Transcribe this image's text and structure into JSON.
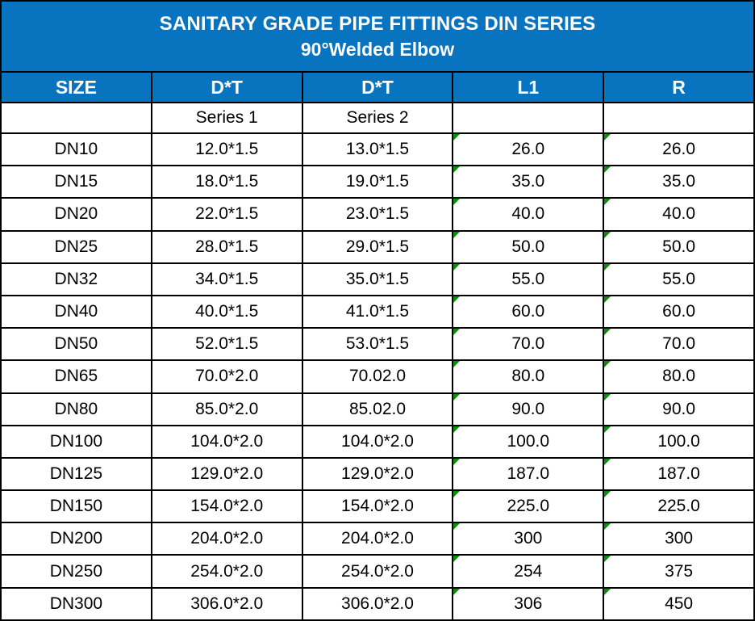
{
  "title": {
    "line1": "SANITARY GRADE PIPE FITTINGS DIN SERIES",
    "line2": "90°Welded Elbow"
  },
  "colors": {
    "header_blue": "#0873be",
    "flag_green": "#0a8f08",
    "border_black": "#000000"
  },
  "table": {
    "columns": [
      "SIZE",
      "D*T",
      "D*T",
      "L1",
      "R"
    ],
    "subheader": [
      "",
      "Series 1",
      "Series 2",
      "",
      ""
    ],
    "flag_columns": [
      3,
      4
    ],
    "rows": [
      [
        "DN10",
        "12.0*1.5",
        "13.0*1.5",
        "26.0",
        "26.0"
      ],
      [
        "DN15",
        "18.0*1.5",
        "19.0*1.5",
        "35.0",
        "35.0"
      ],
      [
        "DN20",
        "22.0*1.5",
        "23.0*1.5",
        "40.0",
        "40.0"
      ],
      [
        "DN25",
        "28.0*1.5",
        "29.0*1.5",
        "50.0",
        "50.0"
      ],
      [
        "DN32",
        "34.0*1.5",
        "35.0*1.5",
        "55.0",
        "55.0"
      ],
      [
        "DN40",
        "40.0*1.5",
        "41.0*1.5",
        "60.0",
        "60.0"
      ],
      [
        "DN50",
        "52.0*1.5",
        "53.0*1.5",
        "70.0",
        "70.0"
      ],
      [
        "DN65",
        "70.0*2.0",
        "70.02.0",
        "80.0",
        "80.0"
      ],
      [
        "DN80",
        "85.0*2.0",
        "85.02.0",
        "90.0",
        "90.0"
      ],
      [
        "DN100",
        "104.0*2.0",
        "104.0*2.0",
        "100.0",
        "100.0"
      ],
      [
        "DN125",
        "129.0*2.0",
        "129.0*2.0",
        "187.0",
        "187.0"
      ],
      [
        "DN150",
        "154.0*2.0",
        "154.0*2.0",
        "225.0",
        "225.0"
      ],
      [
        "DN200",
        "204.0*2.0",
        "204.0*2.0",
        "300",
        "300"
      ],
      [
        "DN250",
        "254.0*2.0",
        "254.0*2.0",
        "254",
        "375"
      ],
      [
        "DN300",
        "306.0*2.0",
        "306.0*2.0",
        "306",
        "450"
      ]
    ]
  }
}
